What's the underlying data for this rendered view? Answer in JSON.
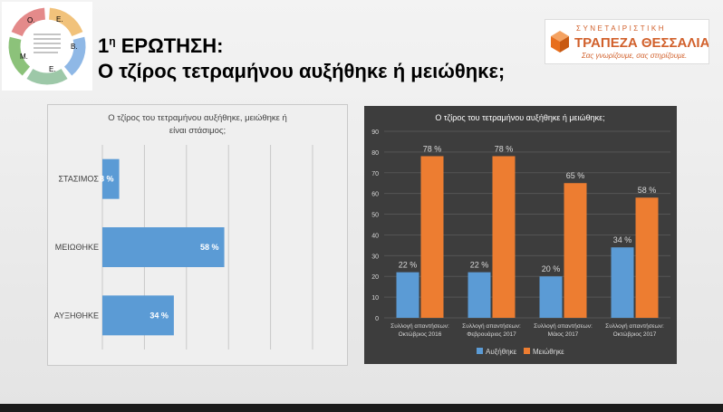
{
  "header": {
    "title_number": "1",
    "title_sup": "η",
    "title_word": "ΕΡΩΤΗΣΗ:",
    "subtitle": "Ο τζίρος τετραμήνου αυξήθηκε ή μειώθηκε;"
  },
  "logo_left": {
    "letters": [
      "Ο.",
      "Ε.",
      "Β.",
      "Ε.",
      "Μ."
    ],
    "colors": [
      "#f1c27b",
      "#8fb8e6",
      "#9dc8a8",
      "#8cc27a",
      "#e48a8a"
    ]
  },
  "logo_right": {
    "top_text": "ΣΥΝΕΤΑΙΡΙΣΤΙΚΗ",
    "name": "ΤΡΑΠΕΖΑ ΘΕΣΣΑΛΙΑΣ",
    "slogan": "Σας γνωρίζουμε, σας στηρίζουμε."
  },
  "chart_data": [
    {
      "type": "bar",
      "orientation": "horizontal",
      "title": "Ο τζίρος του τετραμήνου αυξήθηκε, μειώθηκε ή είναι στάσιμος;",
      "categories": [
        "ΣΤΑΣΙΜΟΣ",
        "ΜΕΙΩΘΗΚΕ",
        "ΑΥΞΗΘΗΚΕ"
      ],
      "values": [
        8,
        58,
        34
      ],
      "labels": [
        "8 %",
        "58 %",
        "34 %"
      ],
      "xlim": [
        0,
        100
      ],
      "grid": true,
      "colors": {
        "bar": "#5b9bd5",
        "background": "#efefef"
      }
    },
    {
      "type": "bar",
      "title": "Ο τζίρος του τετραμήνου αυξήθηκε ή μειώθηκε;",
      "categories": [
        "Συλλογή απαντήσεων: Οκτώβριος 2016",
        "Συλλογή απαντήσεων: Φεβρουάριος 2017",
        "Συλλογή απαντήσεων: Μάιος 2017",
        "Συλλογή απαντήσεων: Οκτώβριος 2017"
      ],
      "category_lines": [
        [
          "Συλλογή απαντήσεων:",
          "Οκτώβριος 2016"
        ],
        [
          "Συλλογή απαντήσεων:",
          "Φεβρουάριος 2017"
        ],
        [
          "Συλλογή απαντήσεων:",
          "Μάιος 2017"
        ],
        [
          "Συλλογή απαντήσεων:",
          "Οκτώβριος 2017"
        ]
      ],
      "series": [
        {
          "name": "Αυξήθηκε",
          "values": [
            22,
            22,
            20,
            34
          ],
          "labels": [
            "22 %",
            "22 %",
            "20 %",
            "34 %"
          ],
          "color": "#5b9bd5"
        },
        {
          "name": "Μειώθηκε",
          "values": [
            78,
            78,
            65,
            58
          ],
          "labels": [
            "78 %",
            "78 %",
            "65 %",
            "58 %"
          ],
          "color": "#ed7d31"
        }
      ],
      "ylim": [
        0,
        90
      ],
      "yticks": [
        "0",
        "10",
        "20",
        "30",
        "40",
        "50",
        "60",
        "70",
        "80",
        "90"
      ],
      "legend": "bottom",
      "grid": true,
      "colors": {
        "background": "#3d3d3d",
        "grid": "#555555",
        "text": "#d9d9d9"
      }
    }
  ]
}
